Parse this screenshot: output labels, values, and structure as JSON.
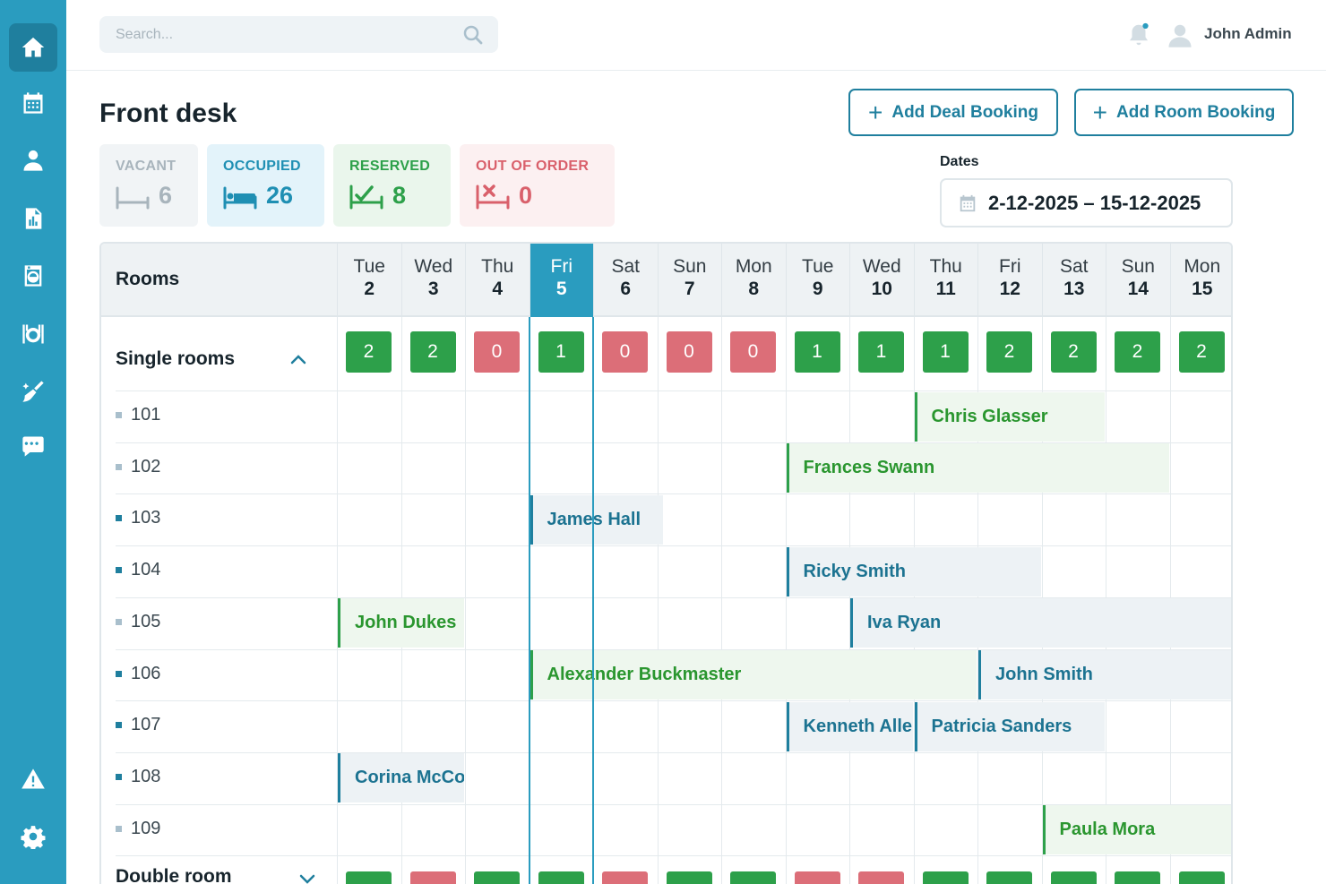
{
  "sidebar": {
    "items": [
      {
        "icon": "home-icon",
        "active": true
      },
      {
        "icon": "calendar-icon"
      },
      {
        "icon": "user-icon"
      },
      {
        "icon": "report-icon"
      },
      {
        "icon": "laundry-icon"
      },
      {
        "icon": "restaurant-icon"
      },
      {
        "icon": "cleaning-icon"
      },
      {
        "icon": "chat-icon"
      },
      {
        "icon": "warning-icon"
      },
      {
        "icon": "settings-icon"
      }
    ]
  },
  "topbar": {
    "search_placeholder": "Search...",
    "user_name": "John Admin"
  },
  "page": {
    "title": "Front desk",
    "add_deal_label": "Add Deal Booking",
    "add_room_label": "Add Room Booking"
  },
  "status": {
    "vacant": {
      "label": "VACANT",
      "count": "6",
      "color": "#a8b4bc"
    },
    "occupied": {
      "label": "OCCUPIED",
      "count": "26",
      "color": "#1f8fb3"
    },
    "reserved": {
      "label": "RESERVED",
      "count": "8",
      "color": "#2da04a"
    },
    "out_of_order": {
      "label": "OUT OF ORDER",
      "count": "0",
      "color": "#d9606b"
    }
  },
  "dates": {
    "label": "Dates",
    "value": "2-12-2025 – 15-12-2025"
  },
  "calendar": {
    "rooms_header": "Rooms",
    "days": [
      {
        "name": "Tue",
        "num": "2"
      },
      {
        "name": "Wed",
        "num": "3"
      },
      {
        "name": "Thu",
        "num": "4"
      },
      {
        "name": "Fri",
        "num": "5",
        "today": true
      },
      {
        "name": "Sat",
        "num": "6"
      },
      {
        "name": "Sun",
        "num": "7"
      },
      {
        "name": "Mon",
        "num": "8"
      },
      {
        "name": "Tue",
        "num": "9"
      },
      {
        "name": "Wed",
        "num": "10"
      },
      {
        "name": "Thu",
        "num": "11"
      },
      {
        "name": "Fri",
        "num": "12"
      },
      {
        "name": "Sat",
        "num": "13"
      },
      {
        "name": "Sun",
        "num": "14"
      },
      {
        "name": "Mon",
        "num": "15"
      }
    ],
    "groups": [
      {
        "label": "Single rooms",
        "expanded": true,
        "availability": [
          "2",
          "2",
          "0",
          "1",
          "0",
          "0",
          "0",
          "1",
          "1",
          "1",
          "2",
          "2",
          "2",
          "2"
        ],
        "rooms": [
          {
            "number": "101",
            "occupied": false
          },
          {
            "number": "102",
            "occupied": false
          },
          {
            "number": "103",
            "occupied": true
          },
          {
            "number": "104",
            "occupied": true
          },
          {
            "number": "105",
            "occupied": false
          },
          {
            "number": "106",
            "occupied": true
          },
          {
            "number": "107",
            "occupied": true
          },
          {
            "number": "108",
            "occupied": true
          },
          {
            "number": "109",
            "occupied": false
          }
        ]
      },
      {
        "label": "Double room",
        "expanded": false,
        "availability_status": [
          "g",
          "r",
          "g",
          "g",
          "r",
          "g",
          "g",
          "r",
          "r",
          "g",
          "g",
          "g",
          "g",
          "g"
        ]
      }
    ],
    "bookings": [
      {
        "room": 0,
        "guest": "Chris Glasser",
        "start": 9,
        "span": 3,
        "status": "reserved"
      },
      {
        "room": 1,
        "guest": "Frances Swann",
        "start": 7,
        "span": 6,
        "status": "reserved"
      },
      {
        "room": 2,
        "guest": "James Hall",
        "start": 3,
        "span": 2.1,
        "status": "occupied"
      },
      {
        "room": 3,
        "guest": "Ricky Smith",
        "start": 7,
        "span": 4,
        "status": "occupied"
      },
      {
        "room": 4,
        "guest": "John Dukes",
        "start": 0,
        "span": 2,
        "status": "reserved"
      },
      {
        "room": 4,
        "guest": "Iva Ryan",
        "start": 8,
        "span": 6,
        "status": "occupied"
      },
      {
        "room": 5,
        "guest": "Alexander Buckmaster",
        "start": 3,
        "span": 7,
        "status": "reserved"
      },
      {
        "room": 5,
        "guest": "John Smith",
        "start": 10,
        "span": 4,
        "status": "occupied"
      },
      {
        "room": 6,
        "guest": "Kenneth Allen",
        "start": 7,
        "span": 2,
        "status": "occupied"
      },
      {
        "room": 6,
        "guest": "Patricia Sanders",
        "start": 9,
        "span": 3,
        "status": "occupied"
      },
      {
        "room": 7,
        "guest": "Corina McCoy",
        "start": 0,
        "span": 2,
        "status": "occupied"
      },
      {
        "room": 8,
        "guest": "Paula Mora",
        "start": 11,
        "span": 3,
        "status": "reserved"
      }
    ]
  }
}
